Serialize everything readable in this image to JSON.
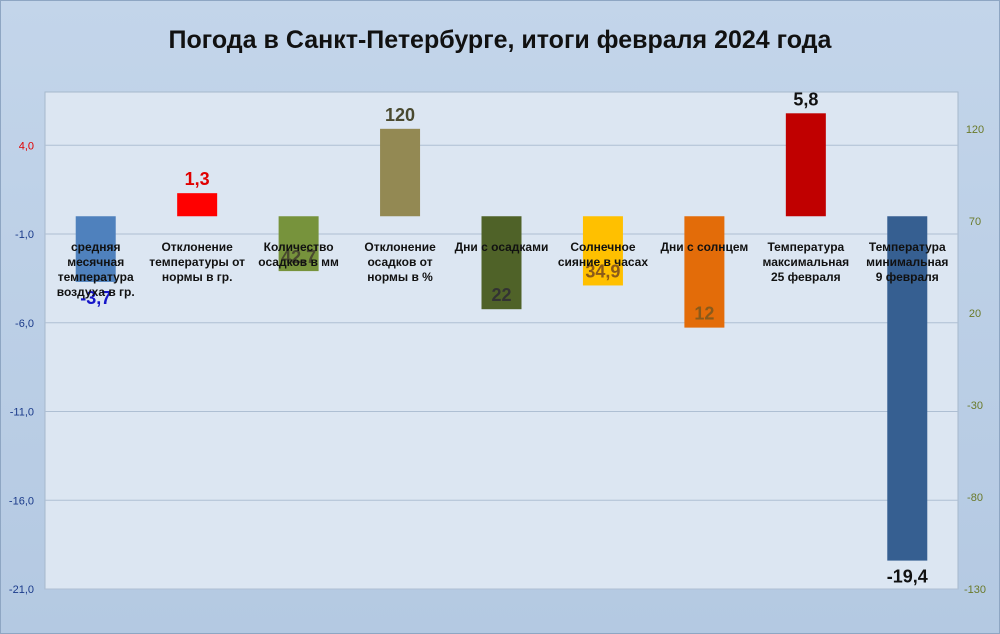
{
  "chart_data": {
    "type": "bar",
    "title": "Погода в Санкт-Петербурге, итоги февраля 2024 года",
    "y_left": {
      "min": -21,
      "max": 7,
      "ticks": [
        "4,0",
        "-1,0",
        "-6,0",
        "-11,0",
        "-16,0",
        "-21,0"
      ],
      "tick_values": [
        4,
        -1,
        -6,
        -11,
        -16,
        -21
      ]
    },
    "y_right": {
      "min": -130,
      "max": 140,
      "ticks": [
        "120",
        "70",
        "20",
        "-30",
        "-80",
        "-130"
      ],
      "tick_values": [
        120,
        70,
        20,
        -30,
        -80,
        -130
      ]
    },
    "grid": true,
    "bars": [
      {
        "category": "средняя месячная температура воздуха в гр.",
        "cat_lines": [
          "средняя",
          "месячная",
          "температура",
          "воздуха в гр."
        ],
        "value": -3.7,
        "value_label": "-3,7",
        "axis": "left",
        "color": "#4f81bd",
        "label_color": "#1515c8"
      },
      {
        "category": "Отклонение температуры от нормы в гр.",
        "cat_lines": [
          "Отклонение",
          "температуры от",
          "нормы в гр."
        ],
        "value": 1.3,
        "value_label": "1,3",
        "axis": "left",
        "color": "#ff0000",
        "label_color": "#e00000"
      },
      {
        "category": "Количество осадков в мм",
        "cat_lines": [
          "Количество",
          "осадков в мм"
        ],
        "value": 42.7,
        "value_label": "42,7",
        "axis": "right",
        "color": "#77933c",
        "label_color": "#4a4a30"
      },
      {
        "category": "Отклонение осадков от нормы в %",
        "cat_lines": [
          "Отклонение",
          "осадков от",
          "нормы в %"
        ],
        "value": 120,
        "value_label": "120",
        "axis": "right",
        "color": "#938953",
        "label_color": "#4a4a30"
      },
      {
        "category": "Дни с осадками",
        "cat_lines": [
          "Дни с осадками"
        ],
        "value": 22,
        "value_label": "22",
        "axis": "right",
        "color": "#4f6228",
        "label_color": "#333333"
      },
      {
        "category": "Солнечное сияние в часах",
        "cat_lines": [
          "Солнечное",
          "сияние в часах"
        ],
        "value": 34.9,
        "value_label": "34,9",
        "axis": "right",
        "color": "#ffc000",
        "label_color": "#8a5a1a"
      },
      {
        "category": "Дни с солнцем",
        "cat_lines": [
          "Дни с солнцем"
        ],
        "value": 12,
        "value_label": "12",
        "axis": "right",
        "color": "#e36c09",
        "label_color": "#8a5a1a"
      },
      {
        "category": "Температура максимальная 25 февраля",
        "cat_lines": [
          "Температура",
          "максимальная",
          "25 февраля"
        ],
        "value": 5.8,
        "value_label": "5,8",
        "axis": "left",
        "color": "#c00000",
        "label_color": "#111111"
      },
      {
        "category": "Температура минимальная 9 февраля",
        "cat_lines": [
          "Температура",
          "минимальная",
          "9 февраля"
        ],
        "value": -19.4,
        "value_label": "-19,4",
        "axis": "left",
        "color": "#365f91",
        "label_color": "#111111"
      }
    ]
  },
  "colors": {
    "left_axis_text": "#e00000",
    "left_axis_text_negative": "#1a3a8a",
    "right_axis_text": "#6a7a2a"
  }
}
